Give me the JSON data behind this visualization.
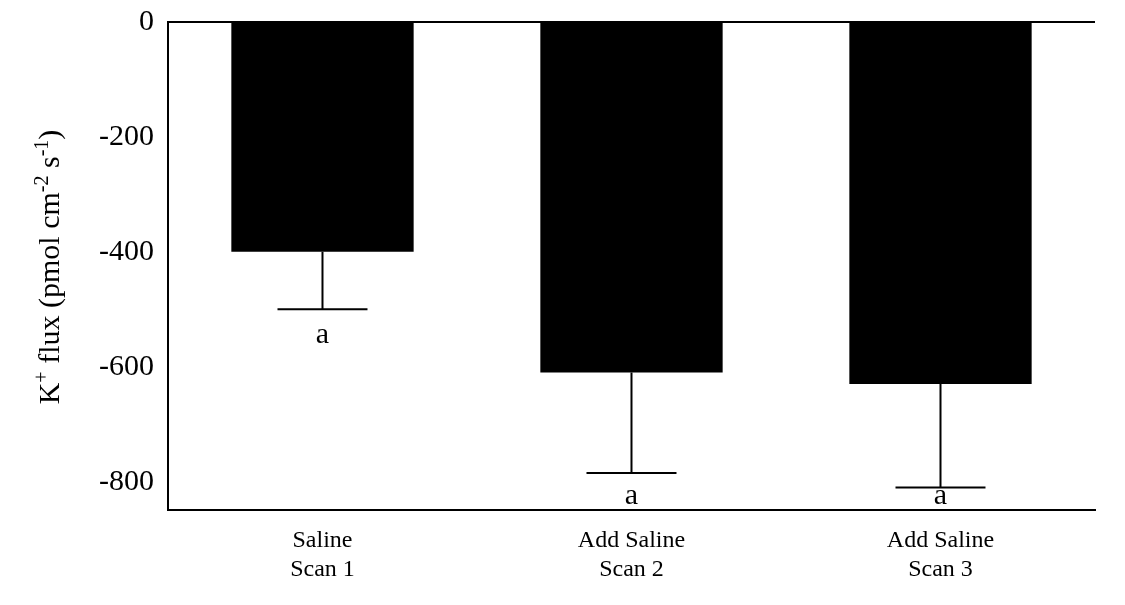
{
  "chart_data": {
    "type": "bar",
    "categories": [
      "Saline\nScan 1",
      "Add Saline\nScan 2",
      "Add Saline\nScan 3"
    ],
    "values": [
      -400,
      -610,
      -630
    ],
    "errors": [
      [
        -500,
        -400
      ],
      [
        -785,
        -610
      ],
      [
        -810,
        -630
      ]
    ],
    "color": "#000000",
    "ylabel": "K$^{+}$ flux (pmol cm$^{-2}$ s$^{-1}$)",
    "ylim": [
      -850,
      0
    ],
    "yticks": [
      -800,
      -600,
      -400,
      -200,
      0
    ],
    "grid": false,
    "legend": false,
    "annotations": [
      "a",
      "a",
      "a"
    ]
  }
}
